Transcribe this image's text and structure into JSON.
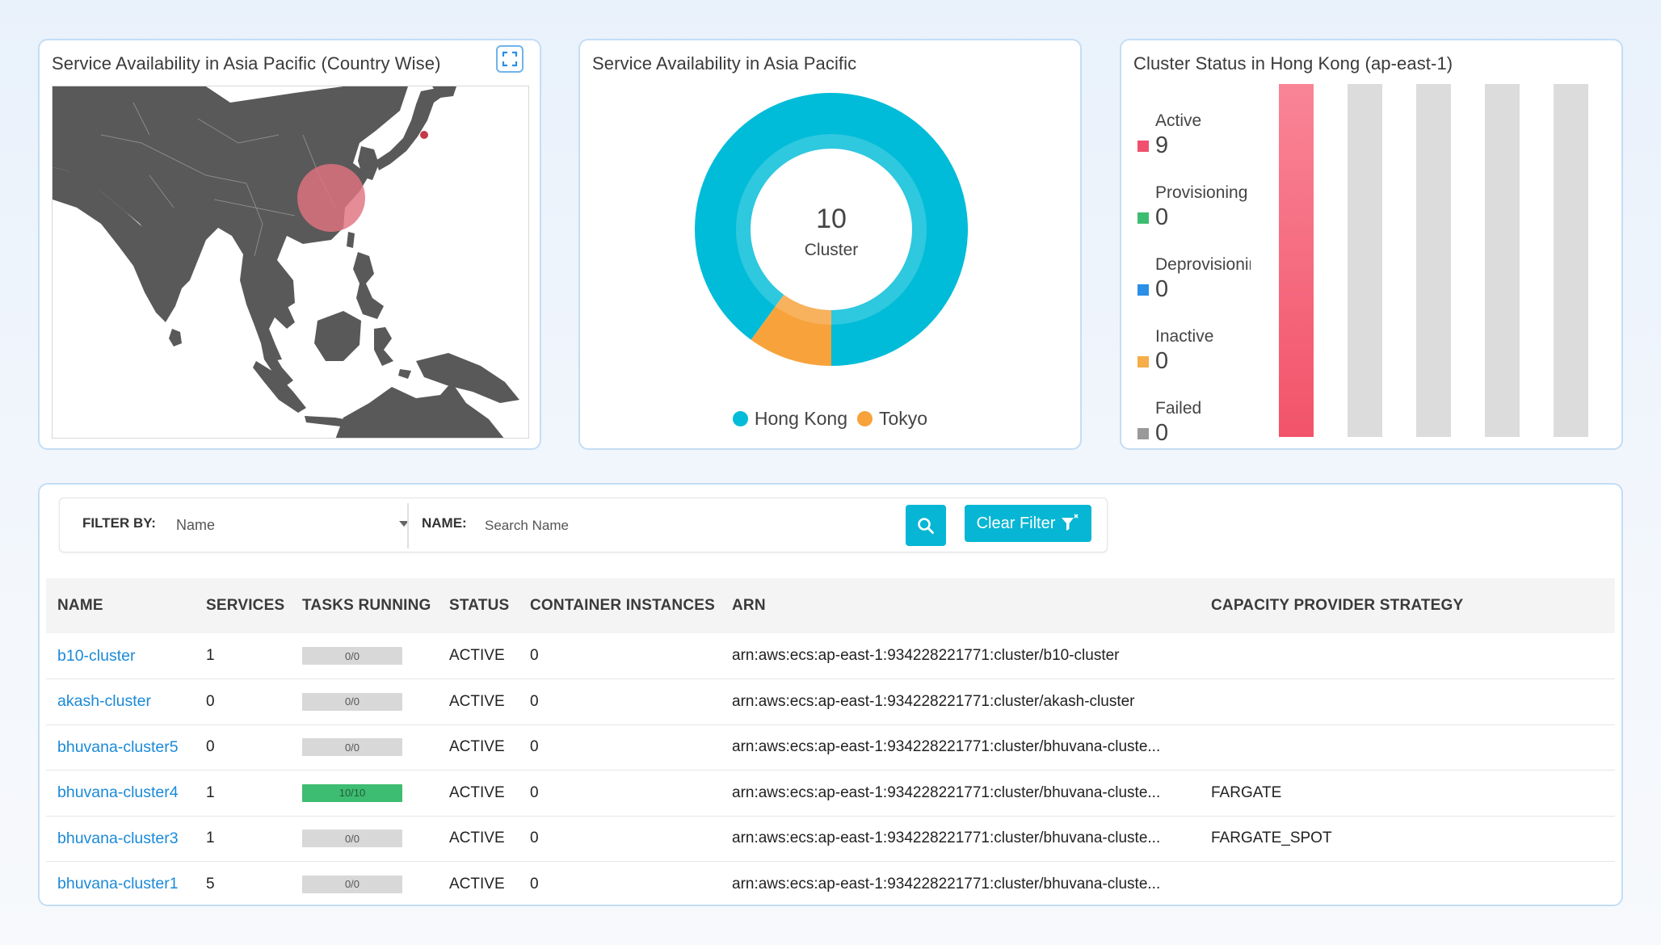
{
  "map_card": {
    "title": "Service Availability in Asia Pacific (Country Wise)",
    "expand_icon": "expand-icon",
    "highlight_color": "#e0737f",
    "land_color": "#595959"
  },
  "donut_card": {
    "title": "Service Availability in Asia Pacific",
    "center_value": "10",
    "center_label": "Cluster"
  },
  "bar_card": {
    "title": "Cluster Status in Hong Kong (ap-east-1)",
    "statuses": [
      {
        "label": "Active",
        "value": "9",
        "color": "#f0506e"
      },
      {
        "label": "Provisioning",
        "value": "0",
        "color": "#3dbd72"
      },
      {
        "label": "Deprovisioning",
        "value": "0",
        "color": "#2b8fe8"
      },
      {
        "label": "Inactive",
        "value": "0",
        "color": "#f5ae4a"
      },
      {
        "label": "Failed",
        "value": "0",
        "color": "#999999"
      }
    ]
  },
  "chart_data": [
    {
      "type": "pie",
      "categories": [
        "Hong Kong",
        "Tokyo"
      ],
      "values": [
        9,
        1
      ],
      "colors": [
        "#00bcd8",
        "#f7a23b"
      ],
      "title": "Service Availability in Asia Pacific",
      "legend": "bottom"
    },
    {
      "type": "bar",
      "categories": [
        "Active",
        "Provisioning",
        "Deprovisioning",
        "Inactive",
        "Failed"
      ],
      "values": [
        9,
        0,
        0,
        0,
        0
      ],
      "colors": [
        "#f0506e",
        "#dcdcdc",
        "#dcdcdc",
        "#dcdcdc",
        "#dcdcdc"
      ],
      "title": "Cluster Status in Hong Kong (ap-east-1)",
      "ylim": [
        0,
        9
      ]
    }
  ],
  "filter": {
    "filter_by_label": "FILTER BY:",
    "filter_by_value": "Name",
    "name_label": "NAME:",
    "name_placeholder": "Search Name",
    "search_icon": "search-icon",
    "clear_label": "Clear Filter",
    "clear_icon": "filter-clear-icon"
  },
  "table": {
    "columns": [
      "NAME",
      "SERVICES",
      "TASKS RUNNING",
      "STATUS",
      "CONTAINER INSTANCES",
      "ARN",
      "CAPACITY PROVIDER STRATEGY"
    ],
    "rows": [
      {
        "name": "b10-cluster",
        "services": "1",
        "tasks": "0/0",
        "tasks_fraction": 0,
        "status": "ACTIVE",
        "instances": "0",
        "arn": "arn:aws:ecs:ap-east-1:934228221771:cluster/b10-cluster",
        "strategy": ""
      },
      {
        "name": "akash-cluster",
        "services": "0",
        "tasks": "0/0",
        "tasks_fraction": 0,
        "status": "ACTIVE",
        "instances": "0",
        "arn": "arn:aws:ecs:ap-east-1:934228221771:cluster/akash-cluster",
        "strategy": ""
      },
      {
        "name": "bhuvana-cluster5",
        "services": "0",
        "tasks": "0/0",
        "tasks_fraction": 0,
        "status": "ACTIVE",
        "instances": "0",
        "arn": "arn:aws:ecs:ap-east-1:934228221771:cluster/bhuvana-cluste...",
        "strategy": ""
      },
      {
        "name": "bhuvana-cluster4",
        "services": "1",
        "tasks": "10/10",
        "tasks_fraction": 1,
        "status": "ACTIVE",
        "instances": "0",
        "arn": "arn:aws:ecs:ap-east-1:934228221771:cluster/bhuvana-cluste...",
        "strategy": "FARGATE"
      },
      {
        "name": "bhuvana-cluster3",
        "services": "1",
        "tasks": "0/0",
        "tasks_fraction": 0,
        "status": "ACTIVE",
        "instances": "0",
        "arn": "arn:aws:ecs:ap-east-1:934228221771:cluster/bhuvana-cluste...",
        "strategy": "FARGATE_SPOT"
      },
      {
        "name": "bhuvana-cluster1",
        "services": "5",
        "tasks": "0/0",
        "tasks_fraction": 0,
        "status": "ACTIVE",
        "instances": "0",
        "arn": "arn:aws:ecs:ap-east-1:934228221771:cluster/bhuvana-cluste...",
        "strategy": ""
      }
    ]
  }
}
